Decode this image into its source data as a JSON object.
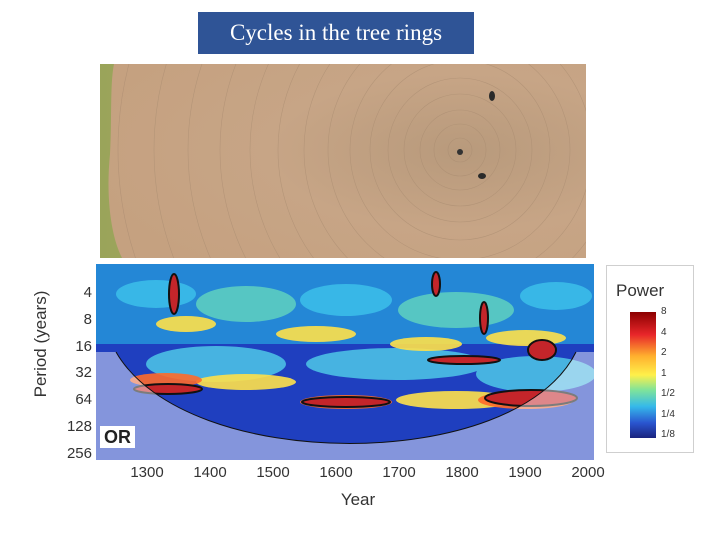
{
  "title": "Cycles in the tree rings",
  "plot": {
    "region": "OR",
    "ylabel": "Period (years)",
    "xlabel": "Year",
    "y_ticks": [
      "4",
      "8",
      "16",
      "32",
      "64",
      "128",
      "256"
    ],
    "x_ticks": [
      "1300",
      "1400",
      "1500",
      "1600",
      "1700",
      "1800",
      "1900",
      "2000"
    ]
  },
  "legend": {
    "title": "Power",
    "ticks": [
      "8",
      "4",
      "2",
      "1",
      "1/2",
      "1/4",
      "1/8"
    ]
  },
  "colors": {
    "title_bg": "#2f5496",
    "wood": "#c7a586",
    "power_high": "#8b0000",
    "power_low": "#1a237e"
  }
}
